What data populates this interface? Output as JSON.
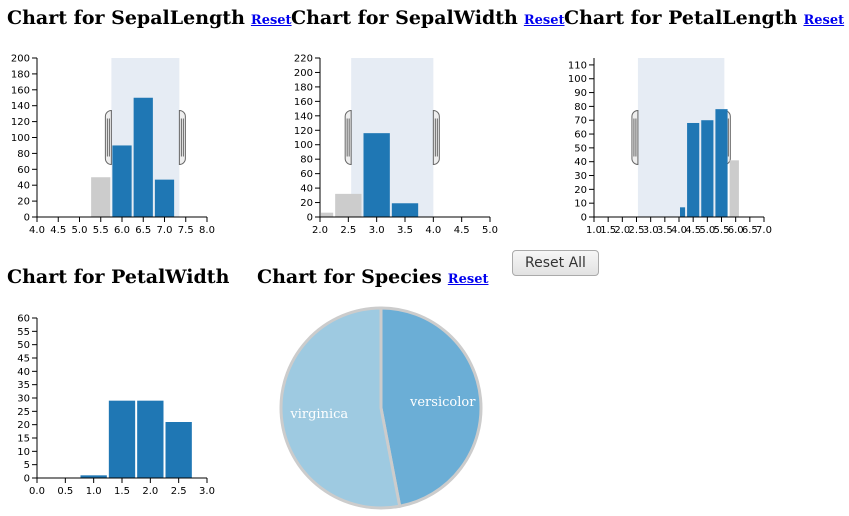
{
  "reset_all_label": "Reset All",
  "reset_label": "Reset",
  "colors": {
    "bar": "#1f77b4",
    "bar_filtered": "#cccccc",
    "brush": "#e6ecf4",
    "pie_virginica": "#9ecae1",
    "pie_versicolor": "#6baed6",
    "pie_stroke": "#cccccc"
  },
  "charts": [
    {
      "title": "Chart for SepalLength",
      "has_reset": true
    },
    {
      "title": "Chart for SepalWidth",
      "has_reset": true
    },
    {
      "title": "Chart for PetalLength",
      "has_reset": true
    },
    {
      "title": "Chart for PetalWidth",
      "has_reset": false
    },
    {
      "title": "Chart for Species",
      "has_reset": true
    }
  ],
  "chart_data": [
    {
      "type": "bar",
      "title": "Chart for SepalLength",
      "x_ticks": [
        "4.0",
        "4.5",
        "5.0",
        "5.5",
        "6.0",
        "6.5",
        "7.0",
        "7.5",
        "8.0"
      ],
      "y_ticks": [
        0,
        20,
        40,
        60,
        80,
        100,
        120,
        140,
        160,
        180,
        200
      ],
      "xlim": [
        4.0,
        8.0
      ],
      "ylim": [
        0,
        200
      ],
      "brush": [
        5.75,
        7.35
      ],
      "bins": [
        {
          "x0": 5.25,
          "x1": 5.75,
          "value": 50,
          "selected": false
        },
        {
          "x0": 5.75,
          "x1": 6.25,
          "value": 90,
          "selected": true
        },
        {
          "x0": 6.25,
          "x1": 6.75,
          "value": 150,
          "selected": true
        },
        {
          "x0": 6.75,
          "x1": 7.25,
          "value": 47,
          "selected": true
        }
      ]
    },
    {
      "type": "bar",
      "title": "Chart for SepalWidth",
      "x_ticks": [
        "2.0",
        "2.5",
        "3.0",
        "3.5",
        "4.0",
        "4.5",
        "5.0"
      ],
      "y_ticks": [
        0,
        20,
        40,
        60,
        80,
        100,
        120,
        140,
        160,
        180,
        200,
        220
      ],
      "xlim": [
        2.0,
        5.0
      ],
      "ylim": [
        0,
        220
      ],
      "brush": [
        2.55,
        4.0
      ],
      "bins": [
        {
          "x0": 2.0,
          "x1": 2.25,
          "value": 6,
          "selected": false
        },
        {
          "x0": 2.25,
          "x1": 2.75,
          "value": 32,
          "selected": false
        },
        {
          "x0": 2.75,
          "x1": 3.25,
          "value": 116,
          "selected": true
        },
        {
          "x0": 3.25,
          "x1": 3.75,
          "value": 19,
          "selected": true
        }
      ]
    },
    {
      "type": "bar",
      "title": "Chart for PetalLength",
      "x_ticks": [
        "1.0",
        "1.5",
        "2.0",
        "2.5",
        "3.0",
        "3.5",
        "4.0",
        "4.5",
        "5.0",
        "5.5",
        "6.0",
        "6.5",
        "7.0"
      ],
      "y_ticks": [
        0,
        10,
        20,
        30,
        40,
        50,
        60,
        70,
        80,
        90,
        100,
        110
      ],
      "xlim": [
        1.0,
        7.0
      ],
      "ylim": [
        0,
        115
      ],
      "brush": [
        2.55,
        5.6
      ],
      "bins": [
        {
          "x0": 4.0,
          "x1": 4.25,
          "value": 7,
          "selected": true
        },
        {
          "x0": 4.25,
          "x1": 4.75,
          "value": 68,
          "selected": true
        },
        {
          "x0": 4.75,
          "x1": 5.25,
          "value": 70,
          "selected": true
        },
        {
          "x0": 5.25,
          "x1": 5.75,
          "value": 78,
          "selected": true
        },
        {
          "x0": 5.75,
          "x1": 6.15,
          "value": 41,
          "selected": false
        }
      ]
    },
    {
      "type": "bar",
      "title": "Chart for PetalWidth",
      "x_ticks": [
        "0.0",
        "0.5",
        "1.0",
        "1.5",
        "2.0",
        "2.5",
        "3.0"
      ],
      "y_ticks": [
        0,
        5,
        10,
        15,
        20,
        25,
        30,
        35,
        40,
        45,
        50,
        55,
        60
      ],
      "xlim": [
        0,
        3.0
      ],
      "ylim": [
        0,
        60
      ],
      "bins": [
        {
          "x0": 0.75,
          "x1": 1.25,
          "value": 1,
          "selected": true
        },
        {
          "x0": 1.25,
          "x1": 1.75,
          "value": 29,
          "selected": true
        },
        {
          "x0": 1.75,
          "x1": 2.25,
          "value": 29,
          "selected": true
        },
        {
          "x0": 2.25,
          "x1": 2.75,
          "value": 21,
          "selected": true
        }
      ]
    },
    {
      "type": "pie",
      "title": "Chart for Species",
      "slices": [
        {
          "label": "versicolor",
          "value": 47
        },
        {
          "label": "virginica",
          "value": 53
        }
      ]
    }
  ]
}
